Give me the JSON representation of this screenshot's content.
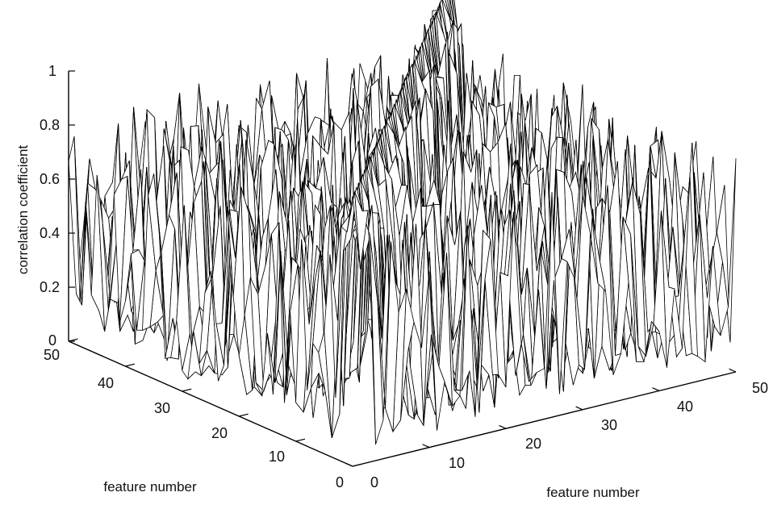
{
  "chart_data": {
    "type": "surface",
    "title": "",
    "zlabel": "correlation coefficient",
    "xlabel": "feature number",
    "ylabel": "feature number",
    "x_range": [
      0,
      50
    ],
    "y_range": [
      0,
      50
    ],
    "z_range": [
      0,
      1
    ],
    "x_ticks": [
      "0",
      "10",
      "20",
      "30",
      "40",
      "50"
    ],
    "y_ticks": [
      "0",
      "10",
      "20",
      "30",
      "40",
      "50"
    ],
    "z_ticks": [
      "0",
      "0.2",
      "0.4",
      "0.6",
      "0.8",
      "1"
    ],
    "grid_size": 50,
    "value_description": "dense mesh surface of correlation coefficients between feature pairs; values range roughly 0.05 to 1.0 with a peak of 1 along the diagonal",
    "colors": {
      "mesh_line": "#000000",
      "mesh_face": "#ffffff"
    }
  }
}
